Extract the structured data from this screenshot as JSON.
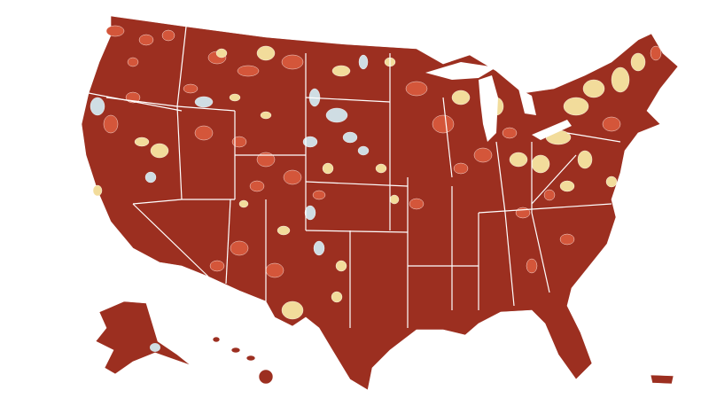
{
  "map": {
    "fills": [
      "#9c2f20",
      "#d4563a",
      "#f2dc9b",
      "#cfdde3"
    ],
    "border": "#ffffff"
  }
}
